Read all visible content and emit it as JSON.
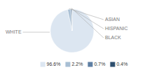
{
  "chart_data": {
    "type": "pie",
    "categories": [
      "WHITE",
      "ASIAN",
      "HISPANIC",
      "BLACK"
    ],
    "values": [
      96.6,
      2.2,
      0.7,
      0.4
    ],
    "value_labels": [
      "96.6%",
      "2.2%",
      "0.7%",
      "0.4%"
    ],
    "colors": [
      "#dce6f1",
      "#a8bfd4",
      "#5e7fa3",
      "#2e4f6e"
    ],
    "legend": "bottom"
  }
}
